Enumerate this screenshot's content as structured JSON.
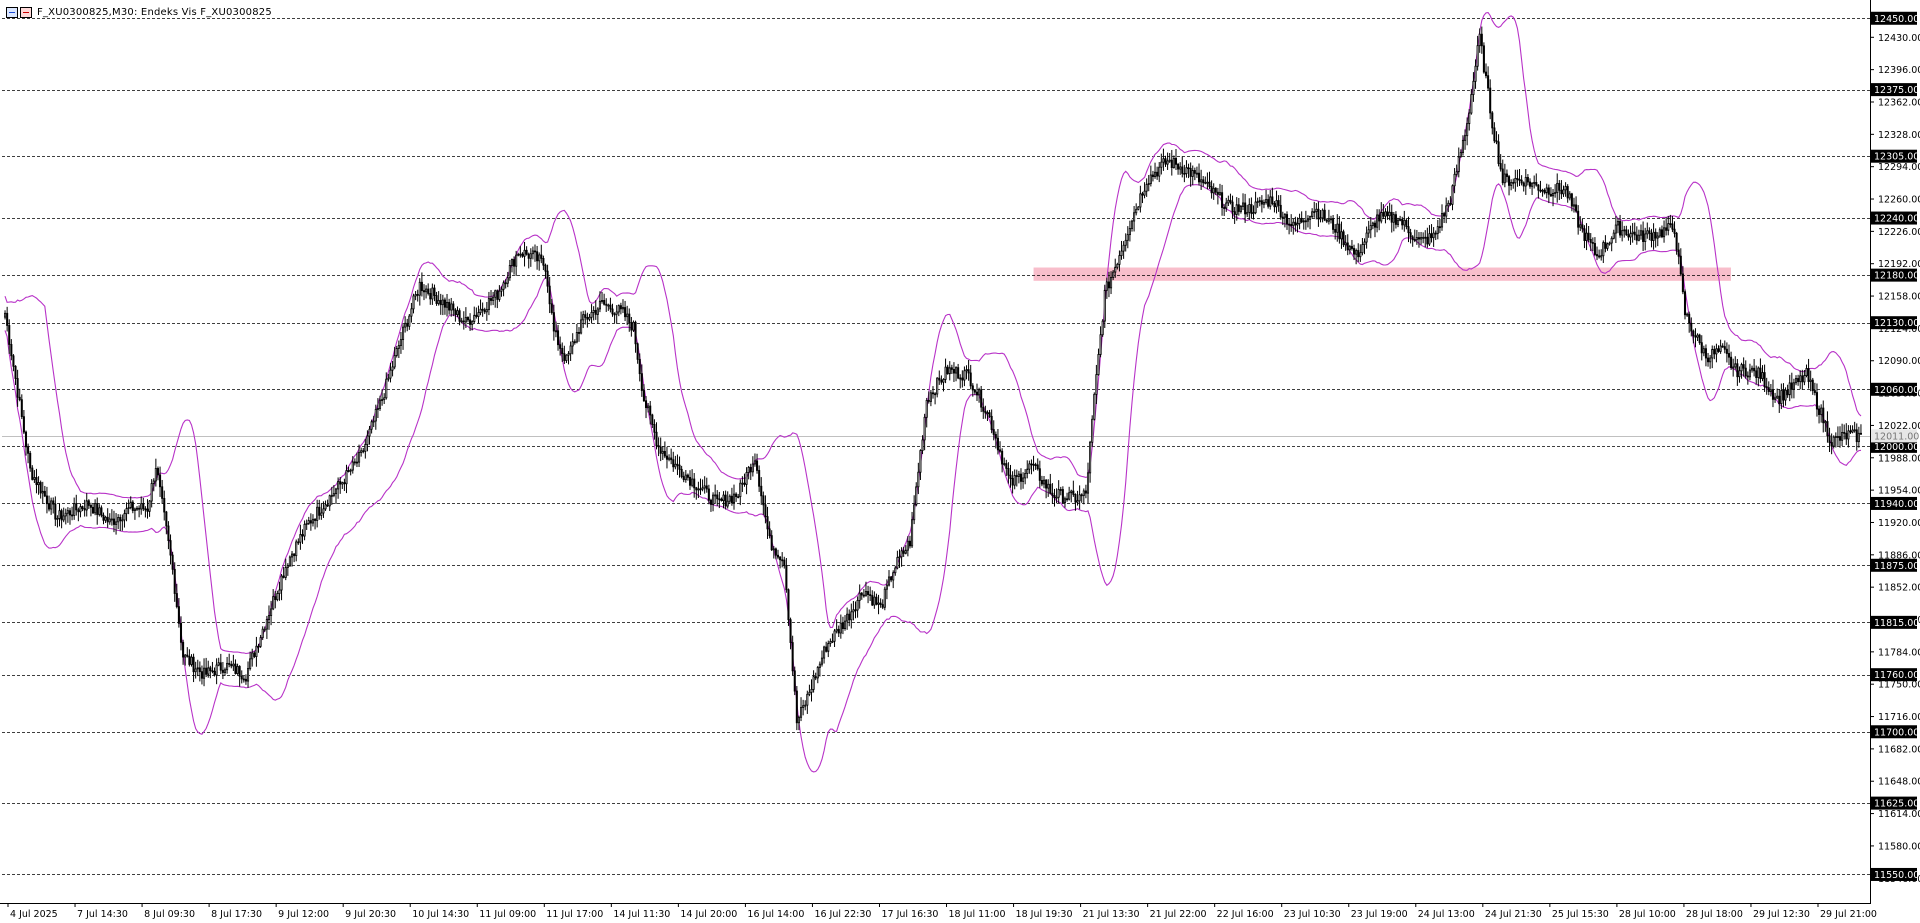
{
  "window": {
    "title": "F_XU0300825,M30:  Endeks Vis F_XU0300825"
  },
  "chart_data": {
    "type": "candlestick",
    "symbol": "F_XU0300825",
    "timeframe": "M30",
    "indicator": "Bollinger Bands",
    "colors": {
      "candle": "#000000",
      "bands": "#b833c8",
      "zone": "#f7b3c2",
      "grid_line": "#000000",
      "level_tag_bg": "#000000",
      "level_tag_text": "#ffffff",
      "current_price_line": "#c0c0c0"
    },
    "y_range": [
      11520,
      12465
    ],
    "price_axis_ticks": [
      "12430.00",
      "12396.00",
      "12362.00",
      "12328.00",
      "12294.00",
      "12260.00",
      "12226.00",
      "12192.00",
      "12158.00",
      "12124.00",
      "12090.00",
      "12056.00",
      "12022.00",
      "11988.00",
      "11954.00",
      "11920.00",
      "11886.00",
      "11852.00",
      "11818.00",
      "11784.00",
      "11750.00",
      "11716.00",
      "11682.00",
      "11648.00",
      "11614.00",
      "11580.00",
      "11546.00"
    ],
    "horizontal_levels": [
      "12450.00",
      "12375.00",
      "12305.00",
      "12240.00",
      "12180.00",
      "12130.00",
      "12060.00",
      "12000.00",
      "11940.00",
      "11875.00",
      "11815.00",
      "11760.00",
      "11700.00",
      "11625.00",
      "11550.00"
    ],
    "zone": {
      "low": 12174,
      "high": 12188,
      "from": "18 Jul 19:30",
      "to": "29 Jul 12:30"
    },
    "current_price": "12011.00",
    "time_axis_labels": [
      "4 Jul 2025",
      "7 Jul 14:30",
      "8 Jul 09:30",
      "8 Jul 17:30",
      "9 Jul 12:00",
      "9 Jul 20:30",
      "10 Jul 14:30",
      "11 Jul 09:00",
      "11 Jul 17:00",
      "14 Jul 11:30",
      "14 Jul 20:00",
      "16 Jul 14:00",
      "16 Jul 22:30",
      "17 Jul 16:30",
      "18 Jul 11:00",
      "18 Jul 19:30",
      "21 Jul 13:30",
      "21 Jul 22:00",
      "22 Jul 16:00",
      "23 Jul 10:30",
      "23 Jul 19:00",
      "24 Jul 13:00",
      "24 Jul 21:30",
      "25 Jul 15:30",
      "28 Jul 10:00",
      "28 Jul 18:00",
      "29 Jul 12:30",
      "29 Jul 21:00"
    ],
    "close_anchors": [
      [
        0,
        12140
      ],
      [
        12,
        11975
      ],
      [
        25,
        11925
      ],
      [
        40,
        11940
      ],
      [
        50,
        11920
      ],
      [
        60,
        11935
      ],
      [
        68,
        11935
      ],
      [
        72,
        11980
      ],
      [
        80,
        11870
      ],
      [
        85,
        11780
      ],
      [
        95,
        11760
      ],
      [
        105,
        11770
      ],
      [
        115,
        11760
      ],
      [
        125,
        11820
      ],
      [
        135,
        11880
      ],
      [
        145,
        11920
      ],
      [
        160,
        11960
      ],
      [
        170,
        11990
      ],
      [
        180,
        12050
      ],
      [
        190,
        12120
      ],
      [
        198,
        12170
      ],
      [
        210,
        12150
      ],
      [
        220,
        12130
      ],
      [
        235,
        12160
      ],
      [
        245,
        12205
      ],
      [
        252,
        12200
      ],
      [
        258,
        12190
      ],
      [
        262,
        12120
      ],
      [
        268,
        12090
      ],
      [
        275,
        12130
      ],
      [
        285,
        12150
      ],
      [
        295,
        12140
      ],
      [
        300,
        12125
      ],
      [
        305,
        12050
      ],
      [
        312,
        12000
      ],
      [
        320,
        11980
      ],
      [
        330,
        11960
      ],
      [
        340,
        11940
      ],
      [
        350,
        11950
      ],
      [
        358,
        11990
      ],
      [
        365,
        11900
      ],
      [
        372,
        11880
      ],
      [
        378,
        11710
      ],
      [
        382,
        11730
      ],
      [
        392,
        11790
      ],
      [
        402,
        11820
      ],
      [
        410,
        11850
      ],
      [
        418,
        11830
      ],
      [
        424,
        11870
      ],
      [
        432,
        11900
      ],
      [
        440,
        12050
      ],
      [
        450,
        12080
      ],
      [
        460,
        12075
      ],
      [
        470,
        12030
      ],
      [
        480,
        11960
      ],
      [
        490,
        11980
      ],
      [
        500,
        11950
      ],
      [
        512,
        11945
      ],
      [
        516,
        11950
      ],
      [
        520,
        12050
      ],
      [
        525,
        12160
      ],
      [
        530,
        12190
      ],
      [
        538,
        12240
      ],
      [
        545,
        12280
      ],
      [
        555,
        12300
      ],
      [
        565,
        12290
      ],
      [
        575,
        12270
      ],
      [
        585,
        12250
      ],
      [
        595,
        12250
      ],
      [
        605,
        12260
      ],
      [
        615,
        12230
      ],
      [
        625,
        12250
      ],
      [
        635,
        12230
      ],
      [
        645,
        12200
      ],
      [
        655,
        12240
      ],
      [
        665,
        12240
      ],
      [
        675,
        12215
      ],
      [
        682,
        12220
      ],
      [
        690,
        12260
      ],
      [
        698,
        12340
      ],
      [
        704,
        12430
      ],
      [
        710,
        12340
      ],
      [
        715,
        12280
      ],
      [
        725,
        12280
      ],
      [
        735,
        12270
      ],
      [
        745,
        12270
      ],
      [
        752,
        12230
      ],
      [
        760,
        12200
      ],
      [
        770,
        12230
      ],
      [
        780,
        12220
      ],
      [
        790,
        12225
      ],
      [
        797,
        12230
      ],
      [
        802,
        12140
      ],
      [
        806,
        12120
      ],
      [
        812,
        12095
      ],
      [
        820,
        12100
      ],
      [
        826,
        12080
      ],
      [
        832,
        12080
      ],
      [
        838,
        12075
      ],
      [
        846,
        12050
      ],
      [
        852,
        12060
      ],
      [
        860,
        12075
      ],
      [
        866,
        12040
      ],
      [
        872,
        12005
      ],
      [
        880,
        12012
      ],
      [
        886,
        12010
      ]
    ],
    "bollinger": {
      "period": 20,
      "stddev": 2
    }
  }
}
